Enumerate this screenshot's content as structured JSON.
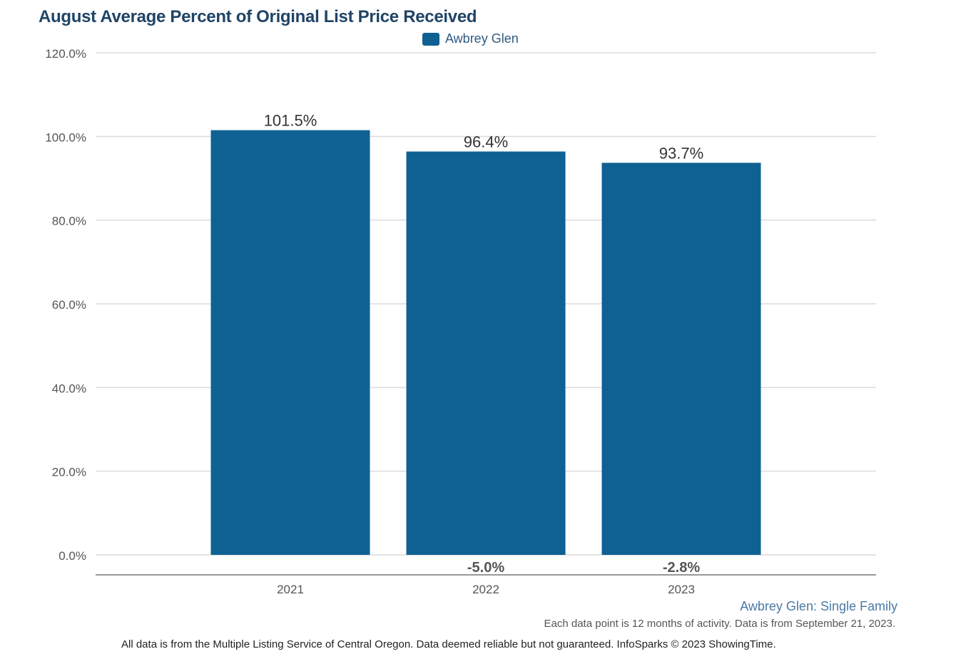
{
  "chart_data": {
    "type": "bar",
    "title": "August Average Percent of Original List Price Received",
    "categories": [
      "2021",
      "2022",
      "2023"
    ],
    "series": [
      {
        "name": "Awbrey Glen",
        "values": [
          101.5,
          96.4,
          93.7
        ],
        "color": "#0f6193"
      }
    ],
    "data_labels": [
      "101.5%",
      "96.4%",
      "93.7%"
    ],
    "change_labels": [
      "",
      "-5.0%",
      "-2.8%"
    ],
    "ylim": [
      0,
      120
    ],
    "yticks": [
      0,
      20,
      40,
      60,
      80,
      100,
      120
    ],
    "ytick_labels": [
      "0.0%",
      "20.0%",
      "40.0%",
      "60.0%",
      "80.0%",
      "100.0%",
      "120.0%"
    ],
    "grid": true,
    "legend_position": "top-center"
  },
  "footer": {
    "subtitle": "Awbrey Glen: Single Family",
    "note": "Each data point is 12 months of activity. Data is from September 21, 2023.",
    "disclaimer": "All data is from the Multiple Listing Service of Central Oregon. Data deemed reliable but not guaranteed. InfoSparks © 2023 ShowingTime."
  }
}
